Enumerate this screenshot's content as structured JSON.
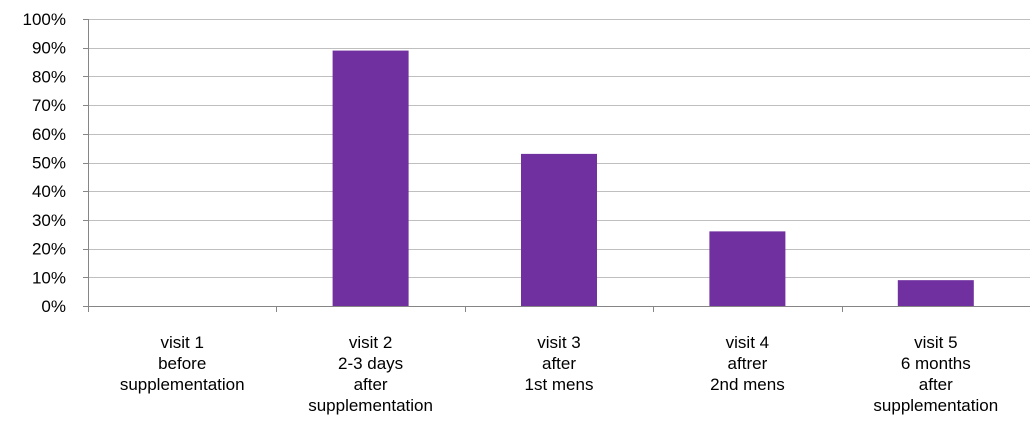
{
  "chart_data": {
    "type": "bar",
    "title": "",
    "xlabel": "",
    "ylabel": "",
    "ylim": [
      0,
      100
    ],
    "yticks": [
      0,
      10,
      20,
      30,
      40,
      50,
      60,
      70,
      80,
      90,
      100
    ],
    "ytick_format": "percent",
    "grid": "horizontal",
    "legend": "none",
    "colors": {
      "bar": "#7030A0",
      "grid": "#BFBFBF",
      "axis": "#868686",
      "text": "#000000"
    },
    "categories": [
      [
        "visit 1",
        "before",
        "supplementation"
      ],
      [
        "visit 2",
        "2-3 days",
        "after",
        "supplementation"
      ],
      [
        "visit 3",
        "after",
        "1st mens"
      ],
      [
        "visit 4",
        "aftrer",
        "2nd mens"
      ],
      [
        "visit 5",
        "6 months",
        "after",
        "supplementation"
      ]
    ],
    "values": [
      0,
      89,
      53,
      26,
      9
    ]
  }
}
